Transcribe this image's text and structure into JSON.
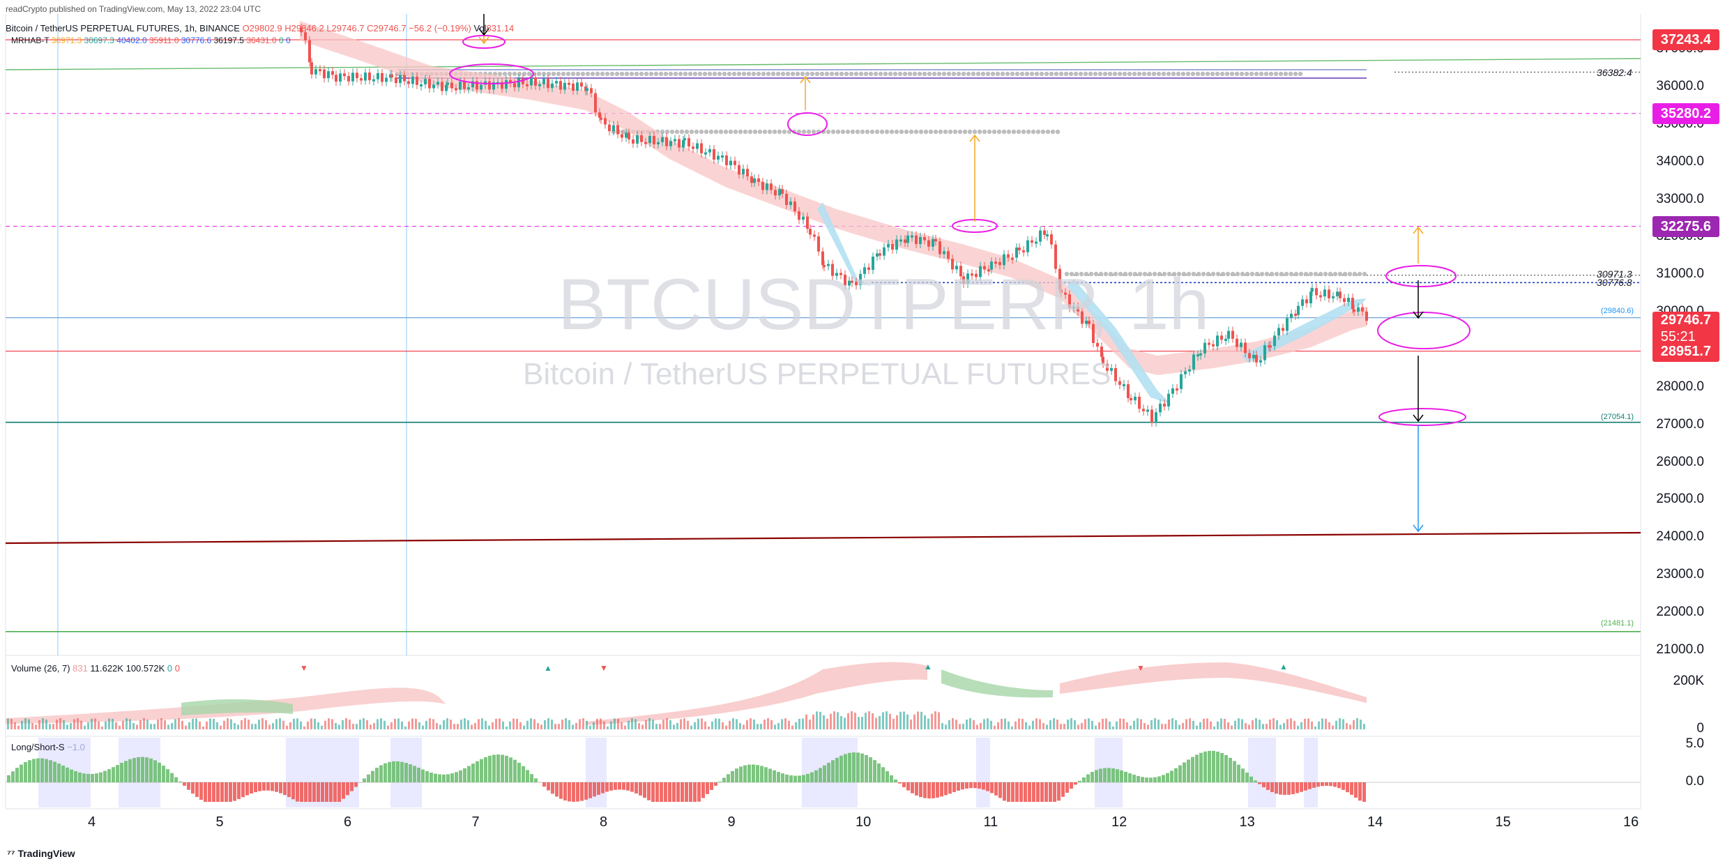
{
  "header": {
    "publisher": "readCrypto published on TradingView.com, May 13, 2022 23:04 UTC",
    "symbol_line": "Bitcoin / TetherUS PERPETUAL FUTURES, 1h, BINANCE",
    "ohlc": {
      "o": "O29802.9",
      "h": "H29846.2",
      "l": "L29746.7",
      "c": "C29746.7",
      "chg": "−56.2 (−0.19%)",
      "vol_label": "Vol",
      "vol": "831.14"
    },
    "indicator_line": {
      "name": "MRHAB-T",
      "values": [
        "30971.3",
        "30697.3",
        "40402.0",
        "35911.0",
        "30776.6",
        "36197.5",
        "36431.0",
        "0",
        "0"
      ]
    }
  },
  "watermark": {
    "ticker": "BTCUSDTPERP, 1h",
    "name": "Bitcoin / TetherUS PERPETUAL FUTURES"
  },
  "price_axis": {
    "ticks": [
      "37000.0",
      "36000.0",
      "35000.0",
      "34000.0",
      "33000.0",
      "32000.0",
      "31000.0",
      "30000.0",
      "29000.0",
      "28000.0",
      "27000.0",
      "26000.0",
      "25000.0",
      "24000.0",
      "23000.0",
      "22000.0",
      "21000.0"
    ]
  },
  "price_tags": [
    {
      "value": "37243.4",
      "color": "#f23645"
    },
    {
      "value": "35280.2",
      "color": "#e91ee6"
    },
    {
      "value": "32275.6",
      "color": "#9c27b0"
    },
    {
      "value": "29746.7",
      "sub": "55:21",
      "color": "#f23645"
    },
    {
      "value": "28951.7",
      "color": "#f23645"
    }
  ],
  "chart_labels": {
    "l36382": "36382.4",
    "l30971": "30971.3",
    "l30776": "30776.8",
    "l29840": "(29840.6)",
    "l27054": "(27054.1)",
    "l21481": "(21481.1)"
  },
  "volume_pane": {
    "title": "Volume (26, 7)",
    "values": [
      "831",
      "11.622K",
      "100.572K",
      "0",
      "0"
    ],
    "axis": [
      "200K",
      "0"
    ]
  },
  "ls_pane": {
    "title": "Long/Short-S",
    "value": "−1.0",
    "axis": [
      "5.0",
      "0.0"
    ]
  },
  "time_axis": {
    "labels": [
      "4",
      "5",
      "6",
      "7",
      "8",
      "9",
      "10",
      "11",
      "12",
      "13",
      "14",
      "15",
      "16"
    ]
  },
  "footer": {
    "brand": "TradingView"
  },
  "colors": {
    "up": "#26a69a",
    "down": "#ef5350",
    "ribbon_pink": "#f8c6c6",
    "ribbon_blue": "#b3e0f2",
    "magenta": "#e91ee6",
    "orange": "#f5a623",
    "horiz_red": "#f23645",
    "green_line": "#4caf50",
    "teal": "#0f7d73",
    "dark_red": "#8b0000",
    "blue_line": "#5b9bd5"
  }
}
